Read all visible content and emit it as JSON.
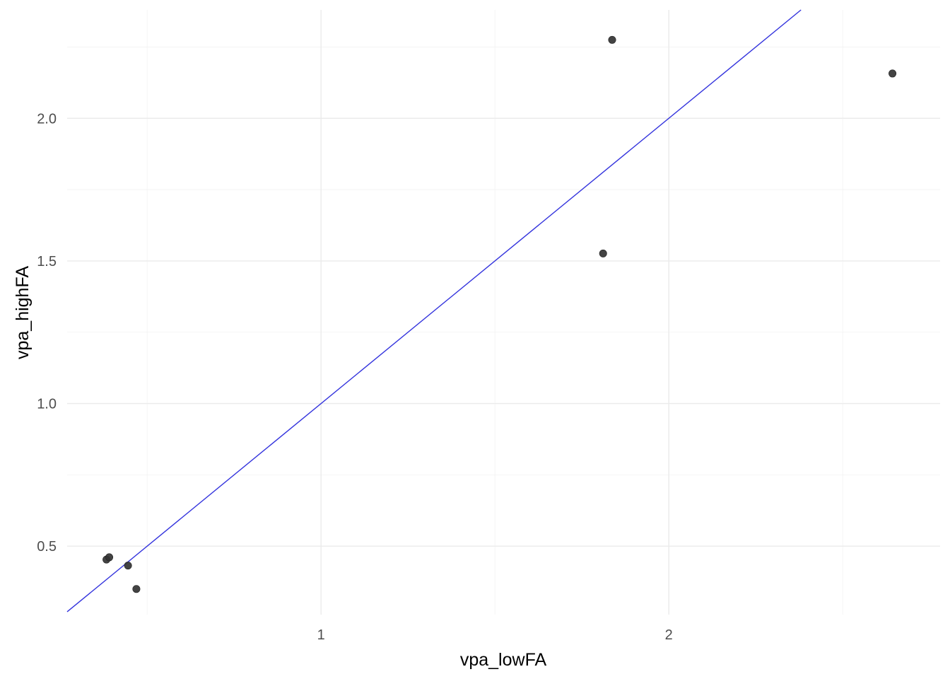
{
  "chart_data": {
    "type": "scatter",
    "title": "",
    "xlabel": "vpa_lowFA",
    "ylabel": "vpa_highFA",
    "xlim": [
      0.27,
      2.78
    ],
    "ylim": [
      0.26,
      2.38
    ],
    "x_ticks": [
      1,
      2
    ],
    "x_tick_labels": [
      "1",
      "2"
    ],
    "x_minor_ticks": [
      0.5,
      1.5,
      2.5
    ],
    "y_ticks": [
      0.5,
      1.0,
      1.5,
      2.0
    ],
    "y_tick_labels": [
      "0.5",
      "1.0",
      "1.5",
      "2.0"
    ],
    "y_minor_ticks": [
      0.75,
      1.25,
      1.75,
      2.25
    ],
    "grid": true,
    "legend": "none",
    "point_color": "#333333",
    "reference_line": {
      "type": "identity",
      "slope": 1,
      "intercept": 0,
      "color": "#3333dd"
    },
    "points": [
      {
        "x": 0.383,
        "y": 0.453
      },
      {
        "x": 0.391,
        "y": 0.461
      },
      {
        "x": 0.445,
        "y": 0.432
      },
      {
        "x": 0.469,
        "y": 0.35
      },
      {
        "x": 1.811,
        "y": 1.526
      },
      {
        "x": 1.837,
        "y": 2.275
      },
      {
        "x": 2.643,
        "y": 2.157
      }
    ]
  }
}
